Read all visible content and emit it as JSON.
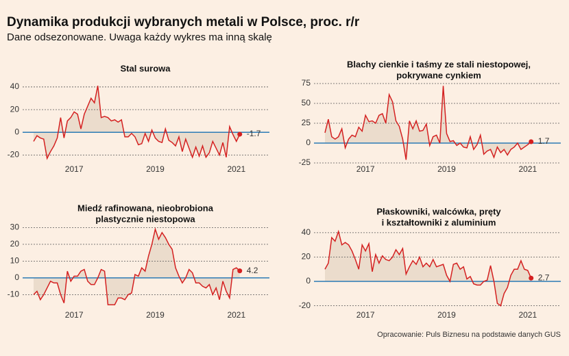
{
  "title": "Dynamika produkcji wybranych metali w Polsce, proc. r/r",
  "subtitle": "Dane odsezonowane. Uwaga każdy wykres ma inną skalę",
  "source": "Opracowanie: Puls Biznesu na podstawie danych GUS",
  "chart_data": [
    {
      "type": "line",
      "title": [
        "Stal surowa"
      ],
      "categories": [
        null,
        null,
        null,
        null,
        null,
        null,
        null,
        null,
        null,
        null,
        null,
        null,
        "2017",
        null,
        null,
        null,
        null,
        null,
        null,
        null,
        null,
        null,
        null,
        null,
        null,
        null,
        null,
        null,
        null,
        null,
        null,
        null,
        null,
        null,
        null,
        null,
        "2019",
        null,
        null,
        null,
        null,
        null,
        null,
        null,
        null,
        null,
        null,
        null,
        null,
        null,
        null,
        null,
        null,
        null,
        null,
        null,
        null,
        null,
        null,
        null,
        "2021",
        null
      ],
      "values": [
        -8,
        -3,
        -5,
        -6,
        -23,
        -17,
        -12,
        -5,
        13,
        -5,
        10,
        13,
        18,
        16,
        3,
        16,
        23,
        30,
        26,
        41,
        13,
        14,
        13,
        10,
        11,
        9,
        11,
        -4,
        -4,
        -1,
        -4,
        -11,
        -10,
        -1,
        -8,
        2,
        -5,
        -8,
        -9,
        3,
        -7,
        -9,
        -12,
        -4,
        -17,
        -6,
        -14,
        -22,
        -13,
        -21,
        -12,
        -22,
        -18,
        -8,
        -14,
        -20,
        -9,
        -22,
        5,
        -2,
        -8,
        -1.7
      ],
      "color": "#d42020",
      "ylim": [
        -27,
        46
      ],
      "yticks": [
        -20,
        0,
        20,
        40
      ],
      "grid": true
    },
    {
      "type": "line",
      "title": [
        "Blachy cienkie i taśmy  ze stali niestopowej,",
        "pokrywane cynkiem"
      ],
      "categories": [
        null,
        null,
        null,
        null,
        null,
        null,
        null,
        null,
        null,
        null,
        null,
        null,
        "2017",
        null,
        null,
        null,
        null,
        null,
        null,
        null,
        null,
        null,
        null,
        null,
        null,
        null,
        null,
        null,
        null,
        null,
        null,
        null,
        null,
        null,
        null,
        null,
        "2019",
        null,
        null,
        null,
        null,
        null,
        null,
        null,
        null,
        null,
        null,
        null,
        null,
        null,
        null,
        null,
        null,
        null,
        null,
        null,
        null,
        null,
        null,
        null,
        "2021",
        null
      ],
      "values": [
        13,
        30,
        8,
        5,
        8,
        18,
        -6,
        5,
        10,
        8,
        20,
        15,
        35,
        27,
        28,
        25,
        35,
        37,
        25,
        61,
        52,
        28,
        21,
        5,
        -21,
        28,
        18,
        28,
        15,
        16,
        24,
        -3,
        8,
        10,
        0,
        72,
        12,
        2,
        3,
        -3,
        0,
        -5,
        -6,
        8,
        -8,
        -2,
        10,
        -14,
        -10,
        -8,
        -18,
        -5,
        -12,
        -8,
        -15,
        -8,
        -5,
        0,
        -8,
        -5,
        -2,
        1.7
      ],
      "color": "#d42020",
      "ylim": [
        -28,
        78
      ],
      "yticks": [
        -25,
        0,
        25,
        50,
        75
      ],
      "grid": true
    },
    {
      "type": "line",
      "title": [
        "Miedź rafinowana, nieobrobiona",
        "plastycznie niestopowa"
      ],
      "categories": [
        null,
        null,
        null,
        null,
        null,
        null,
        null,
        null,
        null,
        null,
        null,
        null,
        "2017",
        null,
        null,
        null,
        null,
        null,
        null,
        null,
        null,
        null,
        null,
        null,
        null,
        null,
        null,
        null,
        null,
        null,
        null,
        null,
        null,
        null,
        null,
        null,
        "2019",
        null,
        null,
        null,
        null,
        null,
        null,
        null,
        null,
        null,
        null,
        null,
        null,
        null,
        null,
        null,
        null,
        null,
        null,
        null,
        null,
        null,
        null,
        null,
        "2021",
        null
      ],
      "values": [
        -10,
        -8,
        -13,
        -10,
        -6,
        -2,
        -3,
        -3,
        -10,
        -15,
        4,
        -2,
        1,
        1,
        4,
        5,
        -2,
        -4,
        -4,
        0,
        5,
        4,
        -16,
        -16,
        -16,
        -12,
        -12,
        -13,
        -10,
        -9,
        2,
        1,
        6,
        4,
        13,
        20,
        29,
        23,
        27,
        24,
        20,
        17,
        6,
        1,
        -3,
        0,
        5,
        3,
        -3,
        -3,
        -5,
        -6,
        -4,
        -10,
        -6,
        -13,
        -2,
        -8,
        -12,
        5,
        6,
        4.2
      ],
      "color": "#d42020",
      "ylim": [
        -18,
        33
      ],
      "yticks": [
        -10,
        0,
        10,
        20,
        30
      ],
      "grid": true
    },
    {
      "type": "line",
      "title": [
        "Płaskowniki, walcówka, pręty",
        "i kształtowniki z aluminium"
      ],
      "categories": [
        null,
        null,
        null,
        null,
        null,
        null,
        null,
        null,
        null,
        null,
        null,
        null,
        "2017",
        null,
        null,
        null,
        null,
        null,
        null,
        null,
        null,
        null,
        null,
        null,
        null,
        null,
        null,
        null,
        null,
        null,
        null,
        null,
        null,
        null,
        null,
        null,
        "2019",
        null,
        null,
        null,
        null,
        null,
        null,
        null,
        null,
        null,
        null,
        null,
        null,
        null,
        null,
        null,
        null,
        null,
        null,
        null,
        null,
        null,
        null,
        null,
        "2021",
        null
      ],
      "values": [
        10,
        15,
        36,
        33,
        41,
        30,
        32,
        30,
        25,
        18,
        10,
        30,
        25,
        31,
        8,
        22,
        15,
        21,
        18,
        17,
        20,
        26,
        22,
        27,
        6,
        12,
        17,
        14,
        20,
        12,
        15,
        12,
        18,
        12,
        13,
        14,
        5,
        0,
        14,
        15,
        10,
        12,
        2,
        4,
        -2,
        -3,
        -3,
        0,
        1,
        13,
        0,
        -18,
        -20,
        -10,
        -5,
        5,
        10,
        10,
        17,
        10,
        9,
        2.7
      ],
      "color": "#d42020",
      "ylim": [
        -25,
        45
      ],
      "yticks": [
        -20,
        0,
        20,
        40
      ],
      "grid": true
    }
  ]
}
